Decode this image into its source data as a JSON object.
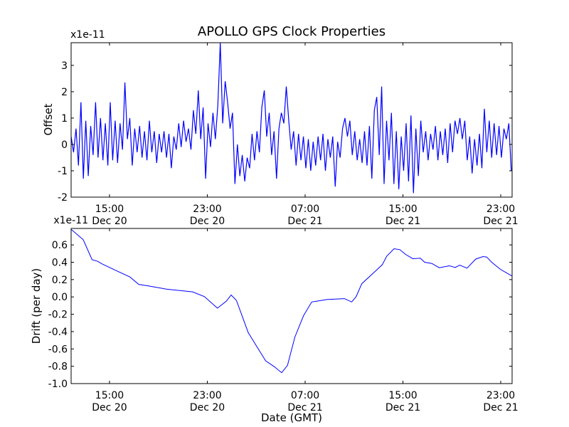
{
  "chart_data": [
    {
      "type": "line",
      "title": "APOLLO GPS Clock Properties",
      "ylabel": "Offset",
      "xlabel": "",
      "offset_text": "x1e-11",
      "x_unit": "hours relative to 15:00 Dec 20 (GMT)",
      "xlim": [
        -3.14,
        32.93
      ],
      "ylim": [
        -2,
        3.86
      ],
      "grid": false,
      "color": "#0000ff",
      "x_ticks": [
        {
          "value": 0,
          "time": "15:00",
          "date": "Dec 20"
        },
        {
          "value": 8,
          "time": "23:00",
          "date": "Dec 20"
        },
        {
          "value": 16,
          "time": "07:00",
          "date": "Dec 21"
        },
        {
          "value": 24,
          "time": "15:00",
          "date": "Dec 21"
        },
        {
          "value": 32,
          "time": "23:00",
          "date": "Dec 21"
        }
      ],
      "y_ticks": [
        {
          "value": 3,
          "label": "3"
        },
        {
          "value": 2,
          "label": "2"
        },
        {
          "value": 1,
          "label": "1"
        },
        {
          "value": 0,
          "label": "0"
        },
        {
          "value": -1,
          "label": "-1"
        },
        {
          "value": -2,
          "label": "-2"
        }
      ],
      "series": [
        {
          "name": "Offset",
          "x_start": -3.14,
          "x_step": 0.2,
          "values": [
            0.3,
            -0.3,
            0.6,
            -0.8,
            1.6,
            -1.3,
            0.9,
            -1.2,
            0.7,
            -0.4,
            1.6,
            -0.5,
            1.0,
            -0.6,
            0.8,
            -0.8,
            1.6,
            -0.6,
            0.9,
            -0.7,
            0.8,
            -0.2,
            2.35,
            0.2,
            1.0,
            -0.8,
            0.6,
            -0.3,
            0.7,
            -0.5,
            0.5,
            -0.6,
            0.9,
            -0.3,
            0.5,
            -0.7,
            0.4,
            -0.3,
            0.5,
            -0.5,
            0.4,
            -0.9,
            0.3,
            -0.2,
            0.8,
            -0.1,
            0.9,
            0.1,
            0.6,
            -0.2,
            1.3,
            0.4,
            2.05,
            0.2,
            1.4,
            -1.3,
            0.8,
            -0.1,
            1.2,
            0.2,
            1.5,
            3.86,
            0.8,
            2.4,
            1.6,
            0.6,
            1.2,
            -1.5,
            0.0,
            -1.2,
            -0.4,
            -1.4,
            -0.5,
            -0.9,
            0.4,
            -0.6,
            0.5,
            -0.3,
            1.4,
            2.05,
            0.3,
            1.2,
            -0.4,
            0.5,
            -1.3,
            0.6,
            1.2,
            0.8,
            2.2,
            0.9,
            -0.2,
            0.5,
            -0.8,
            0.4,
            -0.6,
            0.3,
            -0.9,
            0.2,
            -1.0,
            0.1,
            -0.8,
            0.3,
            -0.6,
            0.4,
            -1.0,
            0.2,
            -0.5,
            0.3,
            -1.6,
            0.1,
            -0.5,
            0.6,
            1.0,
            0.3,
            0.9,
            -0.4,
            0.5,
            -0.6,
            0.2,
            -0.7,
            0.5,
            -0.8,
            0.7,
            -1.3,
            1.3,
            1.8,
            -0.4,
            2.2,
            -1.5,
            0.9,
            -0.6,
            1.2,
            -1.5,
            0.5,
            -1.7,
            0.3,
            -1.0,
            0.8,
            -1.4,
            1.1,
            -1.85,
            0.6,
            -1.2,
            0.9,
            -0.3,
            0.5,
            -0.6,
            0.4,
            -0.2,
            0.7,
            -0.6,
            0.5,
            -0.4,
            0.6,
            -0.7,
            0.8,
            -0.3,
            0.9,
            0.4,
            1.0,
            0.2,
            0.9,
            -0.6,
            0.3,
            -1.1,
            0.2,
            -0.8,
            0.4,
            -0.9,
            1.35,
            -0.3,
            0.9,
            -0.5,
            0.8,
            -0.4,
            0.7,
            -0.5,
            0.6,
            0.2,
            0.8,
            -1.0
          ]
        }
      ]
    },
    {
      "type": "line",
      "title": "",
      "ylabel": "Drift (per day)",
      "xlabel": "Date (GMT)",
      "offset_text": "x1e-11",
      "x_unit": "hours relative to 15:00 Dec 20 (GMT)",
      "xlim": [
        -3.14,
        32.93
      ],
      "ylim": [
        -1.0,
        0.79
      ],
      "grid": false,
      "color": "#0000ff",
      "x_ticks": [
        {
          "value": 0,
          "time": "15:00",
          "date": "Dec 20"
        },
        {
          "value": 8,
          "time": "23:00",
          "date": "Dec 20"
        },
        {
          "value": 16,
          "time": "07:00",
          "date": "Dec 21"
        },
        {
          "value": 24,
          "time": "15:00",
          "date": "Dec 21"
        },
        {
          "value": 32,
          "time": "23:00",
          "date": "Dec 21"
        }
      ],
      "y_ticks": [
        {
          "value": 0.6,
          "label": "0.6"
        },
        {
          "value": 0.4,
          "label": "0.4"
        },
        {
          "value": 0.2,
          "label": "0.2"
        },
        {
          "value": 0.0,
          "label": "0.0"
        },
        {
          "value": -0.2,
          "label": "-0.2"
        },
        {
          "value": -0.4,
          "label": "-0.4"
        },
        {
          "value": -0.6,
          "label": "-0.6"
        },
        {
          "value": -0.8,
          "label": "-0.8"
        },
        {
          "value": -1.0,
          "label": "-1.0"
        }
      ],
      "series": [
        {
          "name": "Drift",
          "x": [
            -3.14,
            -2.15,
            -1.43,
            -0.95,
            -0.6,
            0.6,
            1.67,
            2.39,
            3.22,
            4.65,
            6.8,
            7.76,
            8.83,
            9.55,
            9.95,
            10.38,
            11.34,
            11.93,
            12.77,
            13.48,
            14.08,
            14.56,
            15.16,
            15.87,
            16.54,
            17.06,
            17.78,
            19.21,
            19.81,
            20.17,
            20.64,
            21.84,
            22.32,
            22.67,
            23.27,
            23.75,
            24.22,
            24.82,
            25.42,
            25.78,
            26.37,
            26.97,
            27.8,
            28.28,
            28.64,
            29.24,
            29.95,
            30.55,
            30.86,
            31.26,
            31.98,
            32.93
          ],
          "values": [
            0.78,
            0.66,
            0.43,
            0.41,
            0.38,
            0.3,
            0.23,
            0.145,
            0.126,
            0.09,
            0.058,
            0.003,
            -0.13,
            -0.05,
            0.022,
            -0.04,
            -0.41,
            -0.545,
            -0.737,
            -0.805,
            -0.874,
            -0.79,
            -0.463,
            -0.216,
            -0.058,
            -0.047,
            -0.03,
            -0.02,
            -0.058,
            0.003,
            0.153,
            0.31,
            0.373,
            0.468,
            0.556,
            0.545,
            0.49,
            0.44,
            0.447,
            0.4,
            0.386,
            0.337,
            0.359,
            0.34,
            0.367,
            0.332,
            0.436,
            0.466,
            0.46,
            0.4,
            0.318,
            0.24
          ]
        }
      ]
    }
  ]
}
